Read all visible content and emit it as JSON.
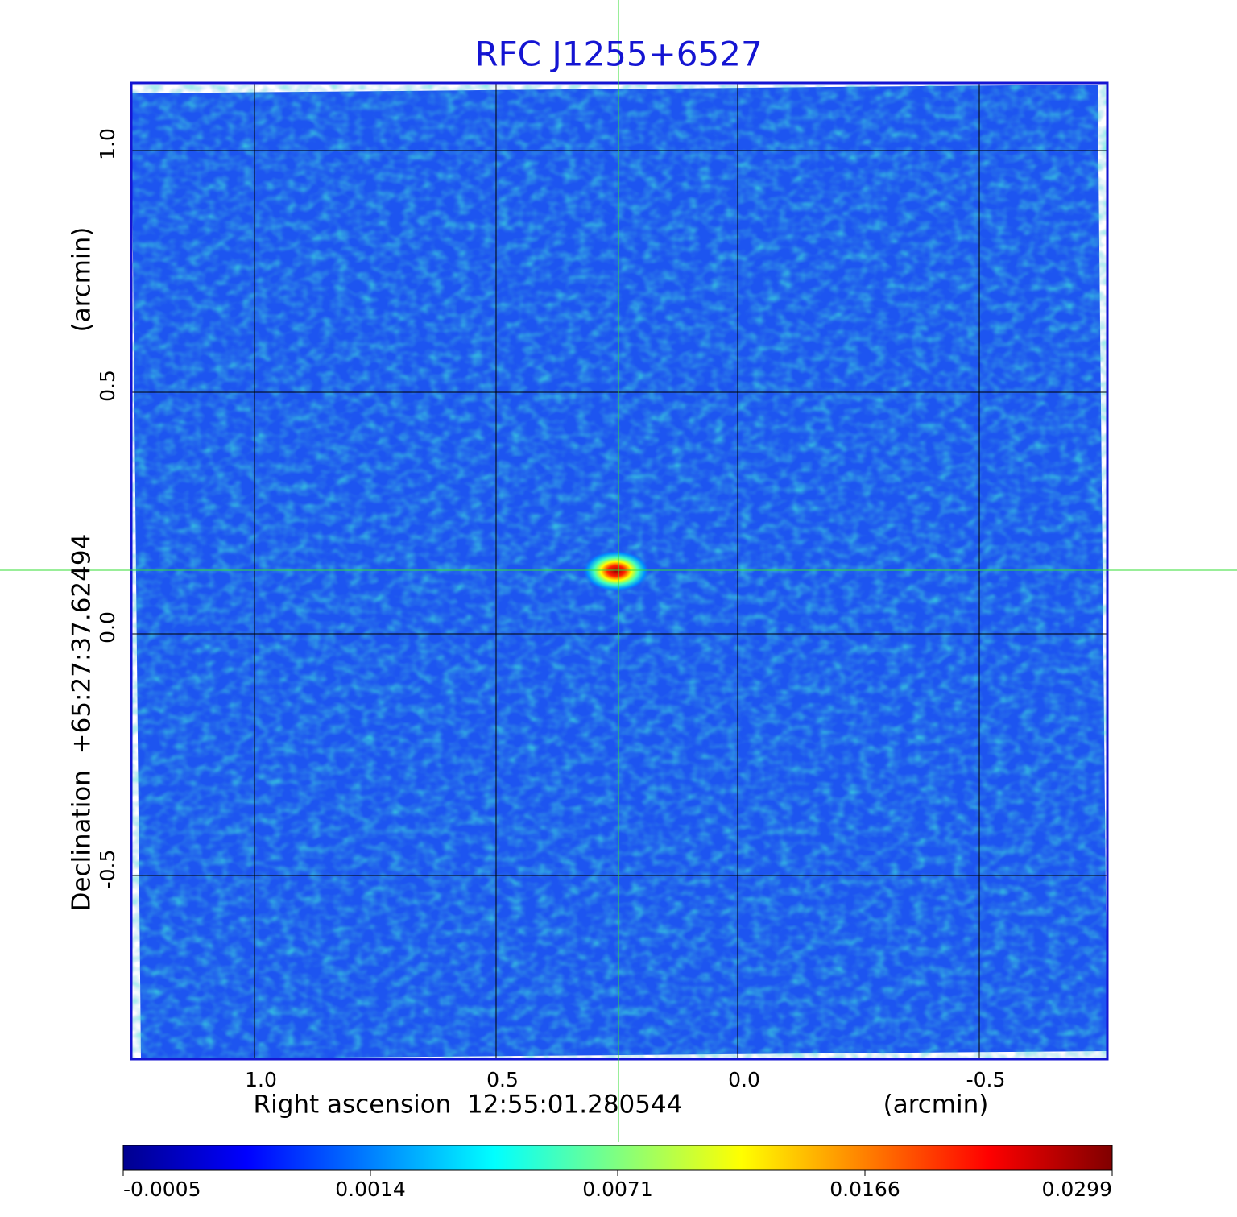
{
  "chart_data": {
    "type": "image",
    "title": "RFC J1255+6527",
    "x_label": "Right ascension  12:55:01.280544",
    "x_unit": "(arcmin)",
    "y_label": "Declination  +65:27:37.62494",
    "y_unit": "(arcmin)",
    "xlim": [
      1.255,
      -0.765
    ],
    "ylim": [
      -0.88,
      1.14
    ],
    "xticks": [
      {
        "value": 1,
        "label": "1.0"
      },
      0.5,
      {
        "value": 0,
        "label": "0.0"
      },
      -0.5
    ],
    "yticks": [
      {
        "value": 1,
        "label": "1.0"
      },
      0.5,
      {
        "value": 0,
        "label": "0.0"
      },
      -0.5
    ],
    "grid": true,
    "frame_color": "#1414d2",
    "title_color": "#1414d2",
    "colorbar": {
      "ticks": [
        -0.0005,
        0.0014,
        0.0071,
        0.0166,
        0.0299
      ],
      "colors": [
        "#00008f",
        "#0000ff",
        "#0080ff",
        "#00ffff",
        "#80ff80",
        "#ffff00",
        "#ff8000",
        "#ff0000",
        "#800000"
      ]
    }
  }
}
